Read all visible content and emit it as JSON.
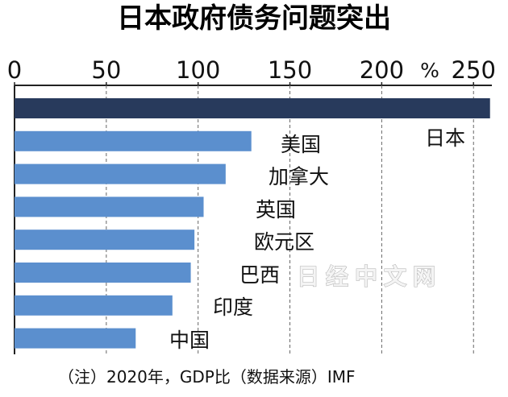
{
  "chart_data": {
    "type": "bar",
    "title": "日本政府债务问题突出",
    "xlabel": "",
    "ylabel": "",
    "xlim": [
      0,
      260
    ],
    "ticks": [
      0,
      50,
      100,
      150,
      200,
      250
    ],
    "unit": "%",
    "grid": true,
    "orientation": "horizontal",
    "categories": [
      "日本",
      "美国",
      "加拿大",
      "英国",
      "欧元区",
      "巴西",
      "印度",
      "中国"
    ],
    "values": [
      259,
      129,
      115,
      103,
      98,
      96,
      86,
      66
    ],
    "colors": {
      "highlight": "#283a5c",
      "default": "#5b8fce",
      "grid": "#666666",
      "axis": "#222222"
    },
    "note": "（注）2020年，GDP比（数据来源）IMF",
    "watermark": "日经中文网"
  }
}
